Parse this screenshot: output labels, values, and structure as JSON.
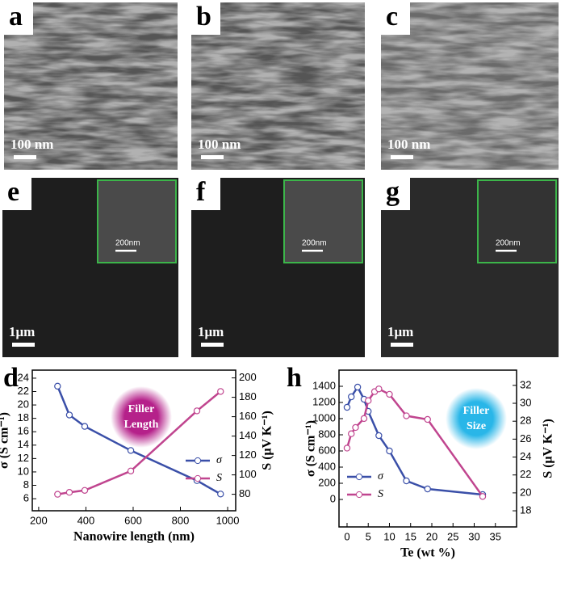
{
  "panels": [
    {
      "label": "a",
      "scale": "100 nm"
    },
    {
      "label": "b",
      "scale": "100 nm"
    },
    {
      "label": "c",
      "scale": "100 nm"
    },
    {
      "label": "e",
      "scale": "1μm",
      "inset_scale": "200nm"
    },
    {
      "label": "f",
      "scale": "1μm",
      "inset_scale": "200nm"
    },
    {
      "label": "g",
      "scale": "1μm",
      "inset_scale": "200nm"
    }
  ],
  "chart_data": [
    {
      "type": "line",
      "panel_label": "d",
      "xlabel": "Nanowire length (nm)",
      "ylabel": "σ (S cm⁻¹)",
      "y2label": "S (μV K⁻¹)",
      "annotation": [
        "Filler",
        "Length"
      ],
      "annotation_color": "#b5218a",
      "xlim": [
        173,
        1034
      ],
      "xticks": [
        200,
        400,
        600,
        800,
        1000
      ],
      "ylim": [
        4.2,
        25.2
      ],
      "yticks": [
        6,
        8,
        10,
        12,
        14,
        16,
        18,
        20,
        22,
        24
      ],
      "y2lim": [
        63,
        208
      ],
      "y2ticks": [
        80,
        100,
        120,
        140,
        160,
        180,
        200
      ],
      "legend": "lower right",
      "series": [
        {
          "name": "σ",
          "color": "#3a4fa8",
          "x": [
            280,
            330,
            395,
            590,
            870,
            970
          ],
          "values": [
            22.8,
            18.5,
            16.8,
            13.2,
            8.7,
            6.7
          ]
        },
        {
          "name": "S",
          "color": "#c0458f",
          "axis": "y2",
          "x": [
            280,
            330,
            395,
            590,
            870,
            970
          ],
          "values": [
            80,
            82,
            84,
            104,
            166,
            186
          ]
        }
      ]
    },
    {
      "type": "line",
      "panel_label": "h",
      "xlabel": "Te (wt %)",
      "ylabel": "σ (S cm⁻¹)",
      "y2label": "S (μV K⁻¹)",
      "annotation": [
        "Filler",
        "Size"
      ],
      "annotation_color": "#29b6e8",
      "xlim": [
        -1.9,
        40
      ],
      "xticks": [
        0,
        5,
        10,
        15,
        20,
        25,
        30,
        35
      ],
      "ylim": [
        -340,
        1600
      ],
      "yticks": [
        0,
        200,
        400,
        600,
        800,
        1000,
        1200,
        1400
      ],
      "y2lim": [
        16.2,
        33.7
      ],
      "y2ticks": [
        18,
        20,
        22,
        24,
        26,
        28,
        30,
        32
      ],
      "legend": "lower left",
      "series": [
        {
          "name": "σ",
          "color": "#3a4fa8",
          "x": [
            0,
            1,
            2.5,
            4,
            5,
            7.5,
            10,
            14,
            19,
            32
          ],
          "values": [
            1140,
            1270,
            1390,
            1240,
            1090,
            790,
            600,
            230,
            130,
            60
          ]
        },
        {
          "name": "S",
          "color": "#c0458f",
          "axis": "y2",
          "x": [
            0,
            1,
            2,
            4,
            5,
            6.5,
            7.5,
            10,
            14,
            19,
            32
          ],
          "values": [
            25,
            26.6,
            27.3,
            28.3,
            30.3,
            31.3,
            31.6,
            31.0,
            28.6,
            28.2,
            19.6
          ]
        }
      ]
    }
  ]
}
